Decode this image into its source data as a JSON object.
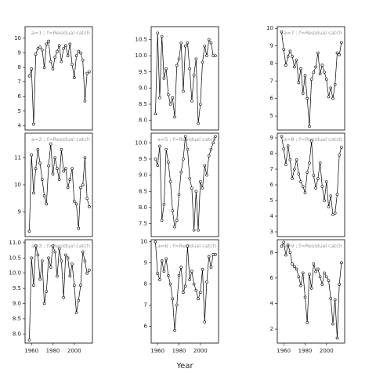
{
  "chart_data": [
    {
      "type": "line",
      "title": "a=1 ; f=Residual catch",
      "color": "#000000",
      "markers": true,
      "x": [
        1958,
        1960,
        1962,
        1964,
        1966,
        1968,
        1970,
        1972,
        1974,
        1976,
        1978,
        1980,
        1982,
        1984,
        1986,
        1988,
        1990,
        1992,
        1994,
        1996,
        1998,
        2000,
        2002,
        2004,
        2006,
        2008,
        2010,
        2012,
        2014
      ],
      "values": [
        7.4,
        7.9,
        4.1,
        8.9,
        9.3,
        9.4,
        9.2,
        8.0,
        9.6,
        9.8,
        8.4,
        7.9,
        8.7,
        9.1,
        9.5,
        8.4,
        9.3,
        9.5,
        8.8,
        9.6,
        8.2,
        7.3,
        8.8,
        9.1,
        9.0,
        8.5,
        5.7,
        7.6,
        7.7
      ],
      "xlim": [
        1954,
        2017
      ],
      "ylim": [
        3.7,
        10.8
      ],
      "yticks": [
        4,
        5,
        6,
        7,
        8,
        9,
        10
      ]
    },
    {
      "type": "line",
      "title": "a=2 ; f=Residual catch",
      "color": "#000000",
      "markers": true,
      "x": [
        1958,
        1960,
        1962,
        1964,
        1966,
        1968,
        1970,
        1972,
        1974,
        1976,
        1978,
        1980,
        1982,
        1984,
        1986,
        1988,
        1990,
        1992,
        1994,
        1996,
        1998,
        2000,
        2002,
        2004,
        2006,
        2008,
        2010,
        2012,
        2014
      ],
      "values": [
        8.3,
        11.1,
        9.7,
        10.6,
        11.3,
        10.8,
        10.2,
        9.6,
        9.3,
        10.7,
        11.5,
        10.4,
        11.0,
        10.6,
        10.2,
        11.3,
        10.5,
        10.6,
        9.9,
        10.2,
        10.6,
        9.4,
        9.3,
        8.4,
        9.9,
        10.0,
        11.0,
        9.5,
        9.2
      ],
      "xlim": [
        1954,
        2017
      ],
      "ylim": [
        8.1,
        11.9
      ],
      "yticks": [
        9,
        10,
        11
      ]
    },
    {
      "type": "line",
      "title": "a=3 ; f=Residual catch",
      "color": "#000000",
      "markers": true,
      "x": [
        1958,
        1960,
        1962,
        1964,
        1966,
        1968,
        1970,
        1972,
        1974,
        1976,
        1978,
        1980,
        1982,
        1984,
        1986,
        1988,
        1990,
        1992,
        1994,
        1996,
        1998,
        2000,
        2002,
        2004,
        2006,
        2008,
        2010,
        2012,
        2014
      ],
      "values": [
        7.8,
        10.5,
        9.6,
        10.9,
        10.6,
        9.8,
        10.4,
        9.0,
        9.4,
        10.5,
        10.2,
        10.9,
        10.7,
        9.9,
        10.8,
        10.4,
        9.2,
        10.6,
        10.5,
        9.9,
        10.3,
        9.6,
        8.7,
        9.1,
        9.6,
        10.7,
        10.4,
        10.0,
        10.1
      ],
      "xlim": [
        1954,
        2017
      ],
      "ylim": [
        7.7,
        11.1
      ],
      "yticks": [
        {
          "value": 8,
          "label": "8.0"
        },
        8.5,
        {
          "value": 9,
          "label": "9.0"
        },
        9.5,
        {
          "value": 10,
          "label": "10.0"
        },
        10.5,
        {
          "value": 11,
          "label": "11.0"
        }
      ],
      "xticks": [
        1960,
        1980,
        2000
      ]
    },
    {
      "type": "line",
      "color": "#000000",
      "markers": true,
      "x": [
        1958,
        1960,
        1962,
        1964,
        1966,
        1968,
        1970,
        1972,
        1974,
        1976,
        1978,
        1980,
        1982,
        1984,
        1986,
        1988,
        1990,
        1992,
        1994,
        1996,
        1998,
        2000,
        2002,
        2004,
        2006,
        2008,
        2010,
        2012,
        2014
      ],
      "values": [
        8.2,
        10.7,
        8.7,
        10.6,
        9.3,
        9.6,
        8.8,
        8.5,
        8.7,
        8.1,
        9.7,
        9.9,
        10.4,
        8.9,
        10.3,
        10.4,
        9.6,
        8.6,
        9.4,
        9.9,
        7.9,
        8.5,
        9.8,
        10.3,
        10.0,
        10.5,
        10.4,
        10.0,
        10.0
      ],
      "xlim": [
        1954,
        2017
      ],
      "ylim": [
        7.7,
        10.9
      ],
      "yticks": [
        {
          "value": 8,
          "label": "8.0"
        },
        8.5,
        {
          "value": 9,
          "label": "9.0"
        },
        9.5,
        {
          "value": 10,
          "label": "10.0"
        },
        10.5
      ]
    },
    {
      "type": "line",
      "title": "a=5 ; f=Residual catch",
      "color": "#000000",
      "markers": true,
      "x": [
        1958,
        1960,
        1962,
        1964,
        1966,
        1968,
        1970,
        1972,
        1974,
        1976,
        1978,
        1980,
        1982,
        1984,
        1986,
        1988,
        1990,
        1992,
        1994,
        1996,
        1998,
        2000,
        2002,
        2004,
        2006,
        2008,
        2010,
        2012,
        2014
      ],
      "values": [
        9.5,
        9.3,
        9.9,
        7.6,
        8.1,
        9.8,
        9.4,
        8.8,
        7.9,
        7.4,
        7.6,
        8.4,
        9.1,
        9.5,
        10.2,
        9.8,
        8.9,
        8.6,
        7.3,
        8.5,
        7.3,
        8.8,
        8.6,
        9.3,
        9.0,
        9.6,
        9.8,
        10.0,
        10.2
      ],
      "xlim": [
        1954,
        2017
      ],
      "ylim": [
        7.1,
        10.3
      ],
      "yticks": [
        7.5,
        {
          "value": 8,
          "label": "8.0"
        },
        8.5,
        {
          "value": 9,
          "label": "9.0"
        },
        9.5,
        {
          "value": 10,
          "label": "10.0"
        }
      ]
    },
    {
      "type": "line",
      "title": "a=6 ; f=Residual catch",
      "color": "#000000",
      "markers": true,
      "xlabel": "Year",
      "x": [
        1958,
        1960,
        1962,
        1964,
        1966,
        1968,
        1970,
        1972,
        1974,
        1976,
        1978,
        1980,
        1982,
        1984,
        1986,
        1988,
        1990,
        1992,
        1994,
        1996,
        1998,
        2000,
        2002,
        2004,
        2006,
        2008,
        2010,
        2012,
        2014
      ],
      "values": [
        10.0,
        8.5,
        8.2,
        9.1,
        8.6,
        9.2,
        8.4,
        8.0,
        7.3,
        5.8,
        7.0,
        8.4,
        8.8,
        7.6,
        7.9,
        9.8,
        8.2,
        8.6,
        8.0,
        7.7,
        7.3,
        7.6,
        8.7,
        6.2,
        8.1,
        9.3,
        8.8,
        9.4,
        9.4
      ],
      "xlim": [
        1954,
        2017
      ],
      "ylim": [
        5.2,
        10.1
      ],
      "yticks": [
        6,
        7,
        8,
        9,
        10
      ],
      "xticks": [
        1960,
        1980,
        2000
      ]
    },
    {
      "type": "line",
      "title": "a=7 ; f=Residual catch",
      "color": "#000000",
      "markers": true,
      "x": [
        1958,
        1960,
        1962,
        1964,
        1966,
        1968,
        1970,
        1972,
        1974,
        1976,
        1978,
        1980,
        1982,
        1984,
        1986,
        1988,
        1990,
        1992,
        1994,
        1996,
        1998,
        2000,
        2002,
        2004,
        2006,
        2008,
        2010,
        2012,
        2014
      ],
      "values": [
        9.8,
        8.8,
        7.9,
        8.4,
        8.7,
        8.4,
        7.8,
        8.2,
        6.9,
        7.7,
        6.3,
        7.3,
        6.0,
        4.4,
        7.1,
        7.5,
        7.8,
        8.6,
        7.4,
        7.9,
        7.5,
        7.1,
        6.1,
        6.6,
        6.0,
        6.8,
        8.6,
        8.5,
        9.2
      ],
      "xlim": [
        1954,
        2017
      ],
      "ylim": [
        4.2,
        10.1
      ],
      "yticks": [
        5,
        6,
        7,
        8,
        9,
        10
      ]
    },
    {
      "type": "line",
      "title": "a=8 ; f=Residual catch",
      "color": "#000000",
      "markers": true,
      "x": [
        1958,
        1960,
        1962,
        1964,
        1966,
        1968,
        1970,
        1972,
        1974,
        1976,
        1978,
        1980,
        1982,
        1984,
        1986,
        1988,
        1990,
        1992,
        1994,
        1996,
        1998,
        2000,
        2002,
        2004,
        2006,
        2008,
        2010,
        2012,
        2014
      ],
      "values": [
        9.1,
        8.3,
        7.3,
        8.5,
        7.6,
        6.4,
        7.0,
        7.6,
        6.7,
        6.2,
        5.9,
        5.5,
        6.8,
        7.4,
        8.8,
        6.6,
        5.8,
        6.4,
        7.4,
        5.9,
        5.0,
        6.2,
        4.6,
        5.3,
        4.1,
        4.2,
        5.4,
        7.9,
        8.4
      ],
      "xlim": [
        1954,
        2017
      ],
      "ylim": [
        2.7,
        9.3
      ],
      "yticks": [
        3,
        4,
        5,
        6,
        7,
        8,
        9
      ]
    },
    {
      "type": "line",
      "title": "a=9 ; f=Residual catch",
      "color": "#000000",
      "markers": true,
      "x": [
        1958,
        1960,
        1962,
        1964,
        1966,
        1968,
        1970,
        1972,
        1974,
        1976,
        1978,
        1980,
        1982,
        1984,
        1986,
        1988,
        1990,
        1992,
        1994,
        1996,
        1998,
        2000,
        2002,
        2004,
        2006,
        2008,
        2010,
        2012,
        2014
      ],
      "values": [
        8.5,
        8.8,
        7.8,
        8.6,
        8.0,
        7.1,
        6.9,
        6.7,
        6.1,
        5.4,
        6.4,
        4.5,
        2.5,
        6.3,
        5.2,
        7.1,
        6.5,
        6.7,
        6.1,
        5.5,
        6.4,
        6.1,
        5.8,
        4.4,
        2.4,
        4.3,
        1.3,
        5.5,
        7.2
      ],
      "xlim": [
        1954,
        2017
      ],
      "ylim": [
        0.9,
        9.0
      ],
      "yticks": [
        2,
        4,
        6,
        8
      ],
      "xticks": [
        1960,
        1980,
        2000
      ]
    }
  ]
}
